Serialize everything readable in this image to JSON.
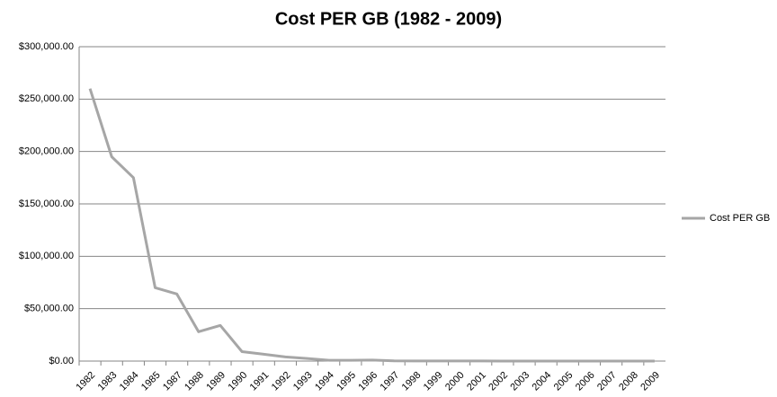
{
  "chart_data": {
    "type": "line",
    "title": "Cost PER GB (1982 - 2009)",
    "categories": [
      "1982",
      "1983",
      "1984",
      "1985",
      "1987",
      "1988",
      "1989",
      "1990",
      "1991",
      "1992",
      "1993",
      "1994",
      "1995",
      "1996",
      "1997",
      "1998",
      "1999",
      "2000",
      "2001",
      "2002",
      "2003",
      "2004",
      "2005",
      "2006",
      "2007",
      "2008",
      "2009"
    ],
    "series": [
      {
        "name": "Cost PER GB",
        "color": "#a6a6a6",
        "values": [
          260000,
          195000,
          175000,
          70000,
          64000,
          28000,
          34000,
          9000,
          6500,
          4000,
          2500,
          800,
          800,
          1000,
          200,
          150,
          100,
          80,
          60,
          40,
          30,
          20,
          15,
          10,
          8,
          5,
          3
        ]
      }
    ],
    "ylim": [
      0,
      300000
    ],
    "yticks": [
      {
        "value": 0,
        "label": "$0.00"
      },
      {
        "value": 50000,
        "label": "$50,000.00"
      },
      {
        "value": 100000,
        "label": "$100,000.00"
      },
      {
        "value": 150000,
        "label": "$150,000.00"
      },
      {
        "value": 200000,
        "label": "$200,000.00"
      },
      {
        "value": 250000,
        "label": "$250,000.00"
      },
      {
        "value": 300000,
        "label": "$300,000.00"
      }
    ],
    "grid": true,
    "legend": "right"
  }
}
